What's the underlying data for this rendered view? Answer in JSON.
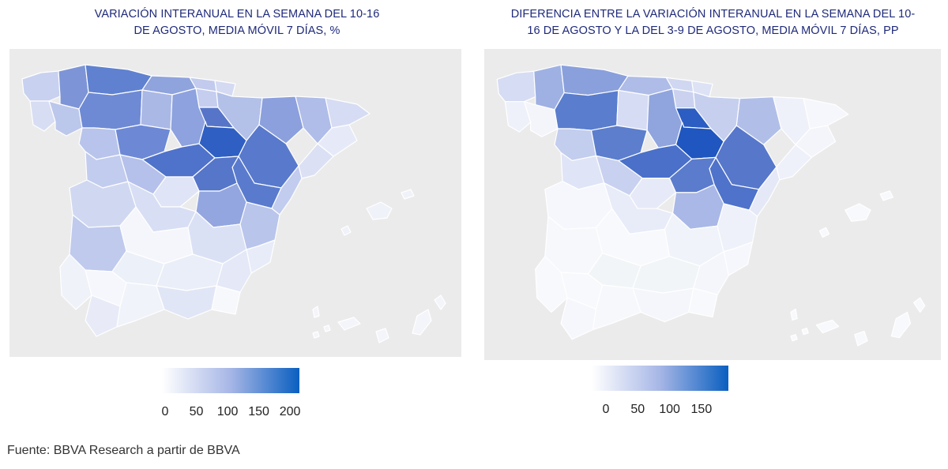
{
  "maps": [
    {
      "title_lines": [
        "VARIACIÓN INTERANUAL EN LA SEMANA DEL 10-16",
        "DE AGOSTO, MEDIA MÓVIL 7 DÍAS, %"
      ],
      "legend": {
        "ticks": [
          "0",
          "50",
          "100",
          "150",
          "200"
        ],
        "min": 0,
        "max": 210,
        "color_low": "#ffffff",
        "color_high": "#0a5fc0"
      }
    },
    {
      "title_lines": [
        "DIFERENCIA ENTRE LA VARIACIÓN INTERANUAL EN LA SEMANA DEL 10-",
        "16 DE AGOSTO Y LA DEL 3-9 DE AGOSTO, MEDIA MÓVIL 7 DÍAS, PP"
      ],
      "legend": {
        "ticks": [
          "0",
          "50",
          "100",
          "150"
        ],
        "min": 0,
        "max": 170,
        "color_low": "#ffffff",
        "color_high": "#0a5fc0"
      }
    }
  ],
  "colors": {
    "background": "#ebebeb",
    "title": "#1f2a7a",
    "region_border": "#ffffff"
  },
  "source": "Fuente: BBVA Research a partir de BBVA"
}
